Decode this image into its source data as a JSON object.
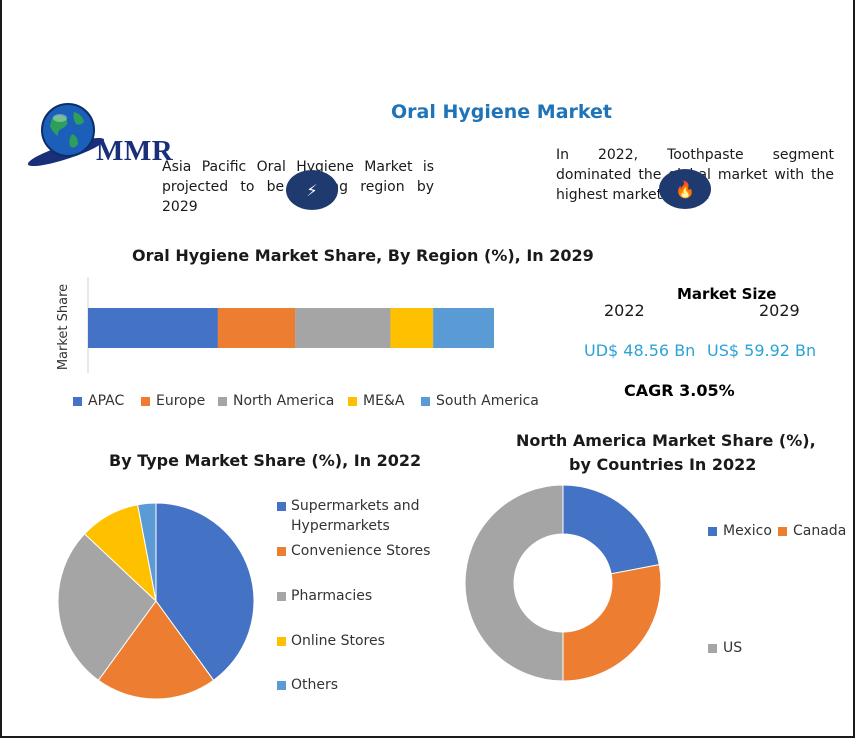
{
  "header": {
    "title": "Oral Hygiene Market",
    "logo_text": "MMR",
    "info_left": "Asia Pacific Oral Hygiene Market is projected to be leading region by 2029",
    "info_right": "In 2022, Toothpaste segment dominated the global market with the highest market share."
  },
  "market_size": {
    "title": "Market Size",
    "year_a": "2022",
    "year_b": "2029",
    "value_a": "UD$ 48.56 Bn",
    "value_b": "US$ 59.92 Bn",
    "cagr": "CAGR 3.05%"
  },
  "colors": {
    "blue": "#4472c4",
    "orange": "#ed7d31",
    "gray": "#a5a5a5",
    "yellow": "#ffc000",
    "lightblue": "#5b9bd5",
    "title_blue": "#1f73b7"
  },
  "chart_data": [
    {
      "type": "bar",
      "orientation": "horizontal-stacked",
      "title": "Oral Hygiene Market Share, By Region (%), In 2029",
      "ylabel": "Market Share",
      "categories": [
        "Market Share"
      ],
      "series": [
        {
          "name": "APAC",
          "values": [
            32
          ]
        },
        {
          "name": "Europe",
          "values": [
            19
          ]
        },
        {
          "name": "North America",
          "values": [
            23.5
          ]
        },
        {
          "name": "ME&A",
          "values": [
            10.5
          ]
        },
        {
          "name": "South America",
          "values": [
            15
          ]
        }
      ],
      "legend": "bottom"
    },
    {
      "type": "pie",
      "title": "By Type Market Share (%), In 2022",
      "labels": [
        "Supermarkets and Hypermarkets",
        "Convenience Stores",
        "Pharmacies",
        "Online Stores",
        "Others"
      ],
      "values": [
        40,
        20,
        27,
        10,
        3
      ],
      "legend": "right"
    },
    {
      "type": "pie",
      "subtype": "donut",
      "title_line1": "North America Market Share (%),",
      "title_line2": "by Countries In 2022",
      "labels": [
        "Mexico",
        "Canada",
        "US"
      ],
      "values": [
        22,
        28,
        50
      ],
      "legend": "right"
    }
  ]
}
